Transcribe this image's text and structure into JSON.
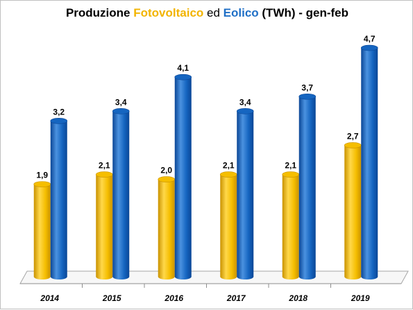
{
  "title": {
    "part1": "Produzione ",
    "fotovoltaico": "Fotovoltaico",
    "part2": " ed ",
    "eolico": "Eolico",
    "part3": " (TWh) - gen-feb"
  },
  "colors": {
    "fotovoltaico": "#f5be00",
    "fotovoltaico_dark": "#c99200",
    "fotovoltaico_light": "#ffd84a",
    "eolico": "#1565c0",
    "eolico_dark": "#0a4696",
    "eolico_light": "#4b92e0",
    "title_fotovoltaico": "#f2b400",
    "title_eolico": "#1f6fc6"
  },
  "chart_data": {
    "type": "bar",
    "categories": [
      "2014",
      "2015",
      "2016",
      "2017",
      "2018",
      "2019"
    ],
    "series": [
      {
        "name": "Fotovoltaico",
        "values": [
          1.9,
          2.1,
          2.0,
          2.1,
          2.1,
          2.7
        ],
        "labels": [
          "1,9",
          "2,1",
          "2,0",
          "2,1",
          "2,1",
          "2,7"
        ]
      },
      {
        "name": "Eolico",
        "values": [
          3.2,
          3.4,
          4.1,
          3.4,
          3.7,
          4.7
        ],
        "labels": [
          "3,2",
          "3,4",
          "4,1",
          "3,4",
          "3,7",
          "4,7"
        ]
      }
    ],
    "ylim": [
      0,
      5
    ],
    "grid": false,
    "legend": "none",
    "style": "3d-cylinder"
  }
}
